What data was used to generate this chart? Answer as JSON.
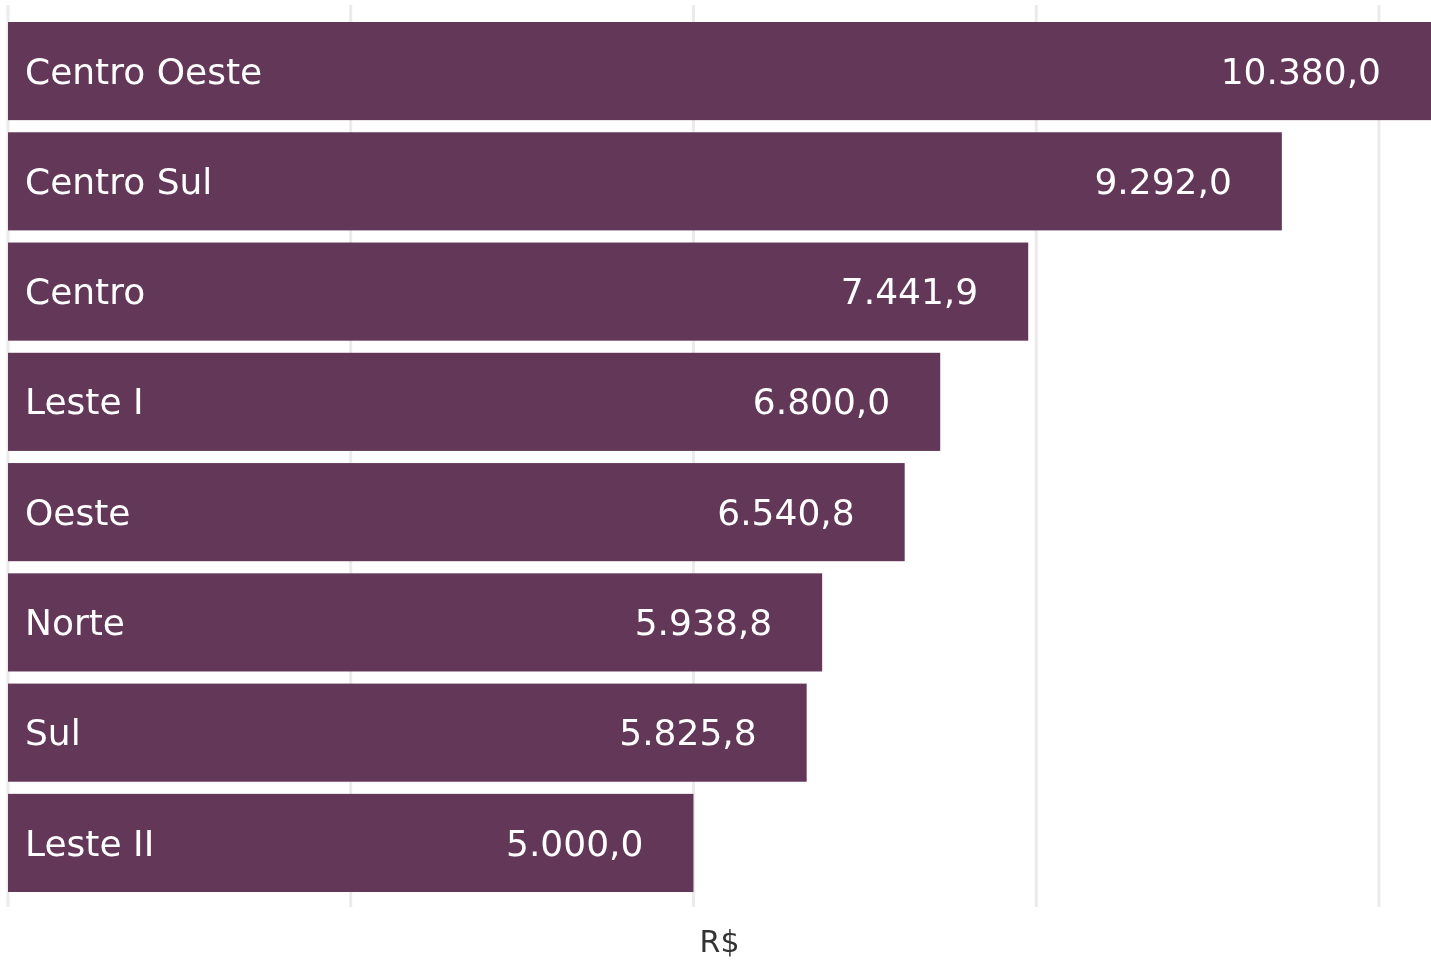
{
  "chart_data": {
    "type": "bar",
    "orientation": "horizontal",
    "xlabel": "R$",
    "categories": [
      "Centro Oeste",
      "Centro Sul",
      "Centro",
      "Leste I",
      "Oeste",
      "Norte",
      "Sul",
      "Leste II"
    ],
    "values": [
      10380,
      9292,
      7441.9,
      6800,
      6540.8,
      5938.8,
      5825.8,
      5000
    ],
    "value_labels": [
      "10.380,0",
      "9.292,0",
      "7.441,9",
      "6.800,0",
      "6.540,8",
      "5.938,8",
      "5.825,8",
      "5.000,0"
    ],
    "color": "#633758",
    "xlim": [
      0,
      10380
    ],
    "xticks": [
      {
        "value": 0,
        "label": null
      },
      {
        "value": 2500,
        "label": null
      },
      {
        "value": 5000,
        "label": null
      },
      {
        "value": 7500,
        "label": null
      },
      {
        "value": 10000,
        "label": null
      }
    ],
    "grid": "x",
    "tick_labels": "y"
  }
}
